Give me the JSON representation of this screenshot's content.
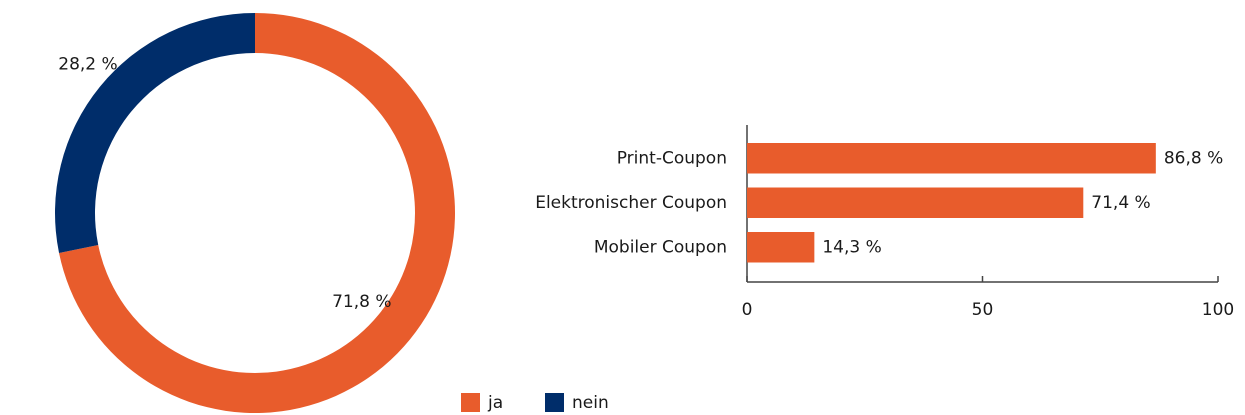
{
  "chart_data": [
    {
      "type": "donut",
      "categories": [
        "ja",
        "nein"
      ],
      "values": [
        71.8,
        28.2
      ],
      "value_labels": [
        "71,8 %",
        "28,2 %"
      ],
      "colors": [
        "#e85c2c",
        "#002d6a"
      ]
    },
    {
      "type": "hbar",
      "categories": [
        "Print-Coupon",
        "Elektronischer Coupon",
        "Mobiler Coupon"
      ],
      "values": [
        86.8,
        71.4,
        14.3
      ],
      "value_labels": [
        "86,8 %",
        "71,4 %",
        "14,3 %"
      ],
      "color": "#e85c2c",
      "xlim": [
        0,
        100
      ],
      "xticks": [
        0,
        50,
        100
      ]
    }
  ]
}
